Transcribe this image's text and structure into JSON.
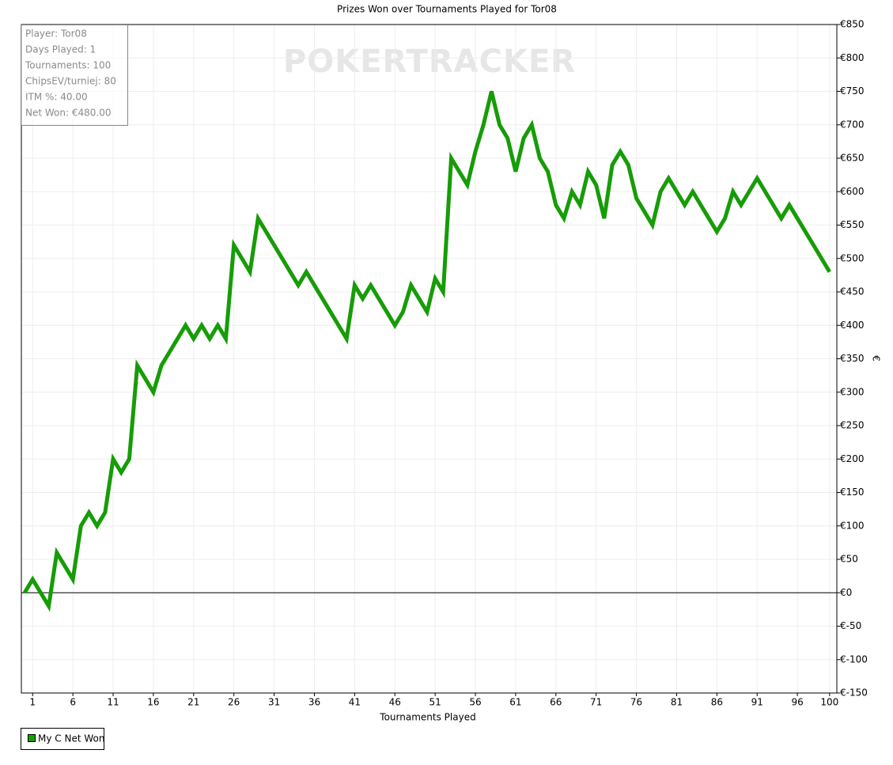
{
  "chart_data": {
    "type": "line",
    "title": "Prizes Won over Tournaments Played for Tor08",
    "xlabel": "Tournaments Played",
    "ylabel": "€",
    "watermark": "POKERTRACKER",
    "stats_box": [
      "Player: Tor08",
      "Days Played: 1",
      "Tournaments: 100",
      "ChipsEV/turniej: 80",
      "ITM %: 40.00",
      "Net Won: €480.00"
    ],
    "x": [
      0,
      1,
      2,
      3,
      4,
      5,
      6,
      7,
      8,
      9,
      10,
      11,
      12,
      13,
      14,
      15,
      16,
      17,
      18,
      19,
      20,
      21,
      22,
      23,
      24,
      25,
      26,
      27,
      28,
      29,
      30,
      31,
      32,
      33,
      34,
      35,
      36,
      37,
      38,
      39,
      40,
      41,
      42,
      43,
      44,
      45,
      46,
      47,
      48,
      49,
      50,
      51,
      52,
      53,
      54,
      55,
      56,
      57,
      58,
      59,
      60,
      61,
      62,
      63,
      64,
      65,
      66,
      67,
      68,
      69,
      70,
      71,
      72,
      73,
      74,
      75,
      76,
      77,
      78,
      79,
      80,
      81,
      82,
      83,
      84,
      85,
      86,
      87,
      88,
      89,
      90,
      91,
      92,
      93,
      94,
      95,
      96,
      97,
      98,
      99,
      100
    ],
    "series": [
      {
        "name": "My C Net Won",
        "color": "#169c07",
        "values": [
          0,
          20,
          0,
          -20,
          60,
          40,
          20,
          100,
          120,
          100,
          120,
          200,
          180,
          200,
          340,
          320,
          300,
          340,
          360,
          380,
          400,
          380,
          400,
          380,
          400,
          380,
          520,
          500,
          480,
          560,
          540,
          520,
          500,
          480,
          460,
          480,
          460,
          440,
          420,
          400,
          380,
          460,
          440,
          460,
          440,
          420,
          400,
          420,
          460,
          440,
          420,
          470,
          450,
          650,
          630,
          610,
          660,
          700,
          750,
          700,
          680,
          630,
          680,
          700,
          650,
          630,
          580,
          560,
          600,
          580,
          630,
          610,
          560,
          640,
          660,
          640,
          590,
          570,
          550,
          600,
          620,
          600,
          580,
          600,
          580,
          560,
          540,
          560,
          600,
          580,
          600,
          620,
          600,
          580,
          560,
          580,
          560,
          540,
          520,
          500,
          480
        ]
      }
    ],
    "xlim": [
      -0.4,
      100.9
    ],
    "ylim": [
      -150,
      850
    ],
    "xticks": [
      1,
      6,
      11,
      16,
      21,
      26,
      31,
      36,
      41,
      46,
      51,
      56,
      61,
      66,
      71,
      76,
      81,
      86,
      91,
      96,
      100
    ],
    "yticks": [
      {
        "value": -150,
        "label": "€-150"
      },
      {
        "value": -100,
        "label": "€-100"
      },
      {
        "value": -50,
        "label": "€-50"
      },
      {
        "value": 0,
        "label": "€0"
      },
      {
        "value": 50,
        "label": "€50"
      },
      {
        "value": 100,
        "label": "€100"
      },
      {
        "value": 150,
        "label": "€150"
      },
      {
        "value": 200,
        "label": "€200"
      },
      {
        "value": 250,
        "label": "€250"
      },
      {
        "value": 300,
        "label": "€300"
      },
      {
        "value": 350,
        "label": "€350"
      },
      {
        "value": 400,
        "label": "€400"
      },
      {
        "value": 450,
        "label": "€450"
      },
      {
        "value": 500,
        "label": "€500"
      },
      {
        "value": 550,
        "label": "€550"
      },
      {
        "value": 600,
        "label": "€600"
      },
      {
        "value": 650,
        "label": "€650"
      },
      {
        "value": 700,
        "label": "€700"
      },
      {
        "value": 750,
        "label": "€750"
      },
      {
        "value": 800,
        "label": "€800"
      },
      {
        "value": 850,
        "label": "€850"
      }
    ],
    "grid": true,
    "legend": "bottom-left"
  }
}
